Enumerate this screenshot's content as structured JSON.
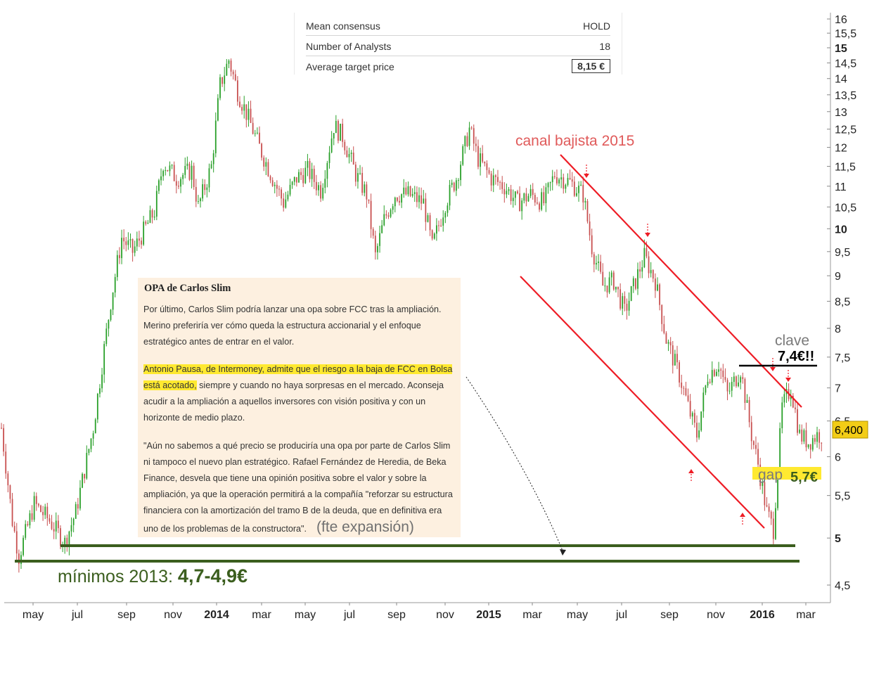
{
  "consensus": {
    "rows": [
      {
        "label": "Mean consensus",
        "value": "HOLD"
      },
      {
        "label": "Number of Analysts",
        "value": "18"
      },
      {
        "label": "Average target price",
        "value": "8,15 €"
      }
    ]
  },
  "news": {
    "title": "OPA de Carlos Slim",
    "p1": "Por último, Carlos Slim podría lanzar una opa sobre FCC tras la ampliación. Merino preferiría ver cómo queda la estructura accionarial y el enfoque estratégico antes de entrar en el valor.",
    "p2_highlight": "Antonio Pausa, de Intermoney, admite que el riesgo a la baja de FCC en Bolsa está acotado,",
    "p2_rest": " siempre y cuando no haya sorpresas en el mercado. Aconseja acudir a la ampliación a aquellos inversores con visión positiva y con un horizonte de medio plazo.",
    "p3": "\"Aún no sabemos a qué precio se produciría una opa por parte de Carlos Slim ni tampoco el nuevo plan estratégico. Rafael Fernández de Heredia, de Beka Finance, desvela que tiene una opinión positiva sobre el valor y sobre la ampliación, ya que la operación permitirá a la compañía \"reforzar su estructura financiera con la amortización del tramo B de la deuda, que en definitiva era uno de los problemas de la constructora\".",
    "source": "(fte expansión)"
  },
  "chart_data": {
    "type": "candlestick",
    "scale": "log",
    "ylim": [
      4.3,
      16.2
    ],
    "current_price": "6,400",
    "x_ticks": [
      "may",
      "jul",
      "sep",
      "nov",
      "2014",
      "mar",
      "may",
      "jul",
      "sep",
      "nov",
      "2015",
      "mar",
      "may",
      "jul",
      "sep",
      "nov",
      "2016",
      "mar"
    ],
    "y_ticks": [
      {
        "value": 16,
        "label": "16"
      },
      {
        "value": 15.5,
        "label": "15,5"
      },
      {
        "value": 15,
        "label": "15",
        "bold": true
      },
      {
        "value": 14.5,
        "label": "14,5"
      },
      {
        "value": 14,
        "label": "14"
      },
      {
        "value": 13.5,
        "label": "13,5"
      },
      {
        "value": 13,
        "label": "13"
      },
      {
        "value": 12.5,
        "label": "12,5"
      },
      {
        "value": 12,
        "label": "12"
      },
      {
        "value": 11.5,
        "label": "11,5"
      },
      {
        "value": 11,
        "label": "11"
      },
      {
        "value": 10.5,
        "label": "10,5"
      },
      {
        "value": 10,
        "label": "10",
        "bold": true
      },
      {
        "value": 9.5,
        "label": "9,5"
      },
      {
        "value": 9,
        "label": "9"
      },
      {
        "value": 8.5,
        "label": "8,5"
      },
      {
        "value": 8,
        "label": "8"
      },
      {
        "value": 7.5,
        "label": "7,5"
      },
      {
        "value": 7,
        "label": "7"
      },
      {
        "value": 6.5,
        "label": "6,5"
      },
      {
        "value": 6,
        "label": "6"
      },
      {
        "value": 5.5,
        "label": "5,5"
      },
      {
        "value": 5,
        "label": "5",
        "bold": true
      },
      {
        "value": 4.5,
        "label": "4,5"
      }
    ],
    "price_path": [
      [
        0,
        6.4
      ],
      [
        0.5,
        5.2
      ],
      [
        0.8,
        4.8
      ],
      [
        1.5,
        5.4
      ],
      [
        2.2,
        5.2
      ],
      [
        2.9,
        4.95
      ],
      [
        3.4,
        5.3
      ],
      [
        4.2,
        6.4
      ],
      [
        5.0,
        8.5
      ],
      [
        5.5,
        9.8
      ],
      [
        6.0,
        9.5
      ],
      [
        7.0,
        10.4
      ],
      [
        7.4,
        11.6
      ],
      [
        8.0,
        11.2
      ],
      [
        8.7,
        11.4
      ],
      [
        9.0,
        10.5
      ],
      [
        9.6,
        11.5
      ],
      [
        10.0,
        13.8
      ],
      [
        10.4,
        14.6
      ],
      [
        10.8,
        13.6
      ],
      [
        11.3,
        12.8
      ],
      [
        11.8,
        12.0
      ],
      [
        12.4,
        11.2
      ],
      [
        12.9,
        10.6
      ],
      [
        13.5,
        11.2
      ],
      [
        14.0,
        11.4
      ],
      [
        14.6,
        10.9
      ],
      [
        15.2,
        12.6
      ],
      [
        15.6,
        12.3
      ],
      [
        16.2,
        11.3
      ],
      [
        16.7,
        10.8
      ],
      [
        17.1,
        9.4
      ],
      [
        17.5,
        10.2
      ],
      [
        18.0,
        10.8
      ],
      [
        18.6,
        10.8
      ],
      [
        19.3,
        10.6
      ],
      [
        19.7,
        9.6
      ],
      [
        20.3,
        10.6
      ],
      [
        20.8,
        11.2
      ],
      [
        21.4,
        12.5
      ],
      [
        21.8,
        11.7
      ],
      [
        22.4,
        11.2
      ],
      [
        23.0,
        11.0
      ],
      [
        23.6,
        10.6
      ],
      [
        24.2,
        10.8
      ],
      [
        24.8,
        10.6
      ],
      [
        25.3,
        11.3
      ],
      [
        26.0,
        11.1
      ],
      [
        26.6,
        10.8
      ],
      [
        27.0,
        9.6
      ],
      [
        27.5,
        8.8
      ],
      [
        28.0,
        8.9
      ],
      [
        28.5,
        8.3
      ],
      [
        29.0,
        8.9
      ],
      [
        29.4,
        9.4
      ],
      [
        29.9,
        8.9
      ],
      [
        30.4,
        7.8
      ],
      [
        31.0,
        7.2
      ],
      [
        31.5,
        6.6
      ],
      [
        31.8,
        6.3
      ],
      [
        32.3,
        7.2
      ],
      [
        32.8,
        7.4
      ],
      [
        33.2,
        6.9
      ],
      [
        33.8,
        7.3
      ],
      [
        34.3,
        6.3
      ],
      [
        34.6,
        5.9
      ],
      [
        35.0,
        5.3
      ],
      [
        35.3,
        5.1
      ],
      [
        35.7,
        6.7
      ],
      [
        36.1,
        7.0
      ],
      [
        36.5,
        6.3
      ],
      [
        36.9,
        6.2
      ],
      [
        37.3,
        6.3
      ],
      [
        37.6,
        6.3
      ]
    ],
    "annotations": {
      "channel": "canal bajista 2015",
      "key_label": "clave",
      "key_value": "7,4€!!",
      "gap_label": "gap",
      "gap_value": "5,7€",
      "min_prefix": "mínimos 2013: ",
      "min_value": "4,7-4,9€",
      "key_level": 7.4,
      "gap_level": 5.7,
      "support_levels": [
        4.9,
        4.7
      ]
    },
    "colors": {
      "up": "#2aa02a",
      "down": "#c85050",
      "channel": "#ee1c25",
      "support": "#3b5e1e",
      "highlight": "#ffe930",
      "channel_text": "#e05a5a",
      "current_price_bg": "#f3cd16"
    }
  }
}
